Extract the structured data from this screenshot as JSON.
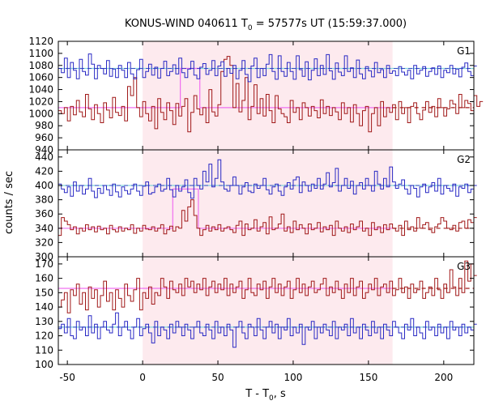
{
  "chart_data": {
    "type": "line",
    "title_prefix": "KONUS-WIND 040611 T",
    "title_sub": "0",
    "title_suffix": " = 57577s UT (15:59:37.000)",
    "xlabel_prefix": "T - T",
    "xlabel_sub": "0",
    "xlabel_suffix": ", s",
    "ylabel": "counts / sec",
    "xlim": [
      -56,
      220
    ],
    "xticks": [
      -50,
      0,
      50,
      100,
      150,
      200
    ],
    "highlight": {
      "x_start": 0,
      "x_end": 166,
      "color": "#fdeaee"
    },
    "colors": {
      "blue": "#2929c4",
      "red": "#a01818",
      "cyan": "#7fd8d8",
      "magenta": "#f070f0"
    },
    "panels": [
      {
        "name": "G1",
        "ylim": [
          940,
          1120
        ],
        "yticks": [
          940,
          960,
          980,
          1000,
          1020,
          1040,
          1060,
          1080,
          1100,
          1120
        ],
        "blue": {
          "name": "Blue series",
          "x_start": -56,
          "step": 2,
          "values": [
            1075,
            1068,
            1092,
            1060,
            1085,
            1072,
            1058,
            1090,
            1070,
            1064,
            1099,
            1082,
            1058,
            1080,
            1075,
            1066,
            1088,
            1062,
            1074,
            1060,
            1080,
            1072,
            1060,
            1085,
            1066,
            1058,
            1073,
            1090,
            1060,
            1070,
            1082,
            1064,
            1077,
            1059,
            1075,
            1087,
            1063,
            1070,
            1081,
            1066,
            1092,
            1068,
            1060,
            1074,
            1087,
            1064,
            1058,
            1077,
            1083,
            1065,
            1072,
            1088,
            1063,
            1079,
            1086,
            1062,
            1075,
            1067,
            1080,
            1058,
            1072,
            1088,
            1065,
            1053,
            1079,
            1092,
            1060,
            1075,
            1063,
            1082,
            1098,
            1070,
            1057,
            1096,
            1070,
            1062,
            1085,
            1070,
            1057,
            1096,
            1073,
            1062,
            1086,
            1056,
            1072,
            1091,
            1063,
            1080,
            1065,
            1098,
            1071,
            1057,
            1084,
            1069,
            1063,
            1096,
            1070,
            1076,
            1060,
            1089,
            1066,
            1058,
            1078,
            1071,
            1061,
            1085,
            1068,
            1073,
            1060,
            1080,
            1067,
            1071,
            1063,
            1078,
            1069,
            1064,
            1072,
            1058,
            1080,
            1066,
            1072,
            1078,
            1062,
            1070,
            1076,
            1065,
            1079,
            1060,
            1072,
            1068,
            1080,
            1066,
            1074,
            1061,
            1077,
            1084,
            1070,
            1063,
            1079
          ]
        },
        "red": {
          "name": "Red series",
          "x_start": -56,
          "step": 2,
          "values": [
            1005,
            1000,
            1010,
            988,
            1012,
            998,
            1022,
            1003,
            995,
            1032,
            1008,
            990,
            1015,
            1000,
            985,
            1018,
            1006,
            993,
            1027,
            1002,
            997,
            1012,
            988,
            1045,
            1030,
            1060,
            1010,
            995,
            1020,
            1000,
            988,
            1012,
            975,
            1025,
            1002,
            990,
            1018,
            1005,
            982,
            1017,
            996,
            1012,
            1025,
            970,
            1002,
            1030,
            1008,
            998,
            1010,
            985,
            1040,
            1003,
            996,
            1015,
            1070,
            1090,
            1095,
            1080,
            1010,
            1050,
            1003,
            1022,
            1060,
            990,
            1012,
            1048,
            1000,
            1025,
            996,
            1032,
            1005,
            985,
            1030,
            1008,
            1000,
            995,
            985,
            1022,
            1002,
            1010,
            990,
            1018,
            1010,
            996,
            1012,
            1005,
            993,
            1023,
            1000,
            1012,
            997,
            1010,
            1003,
            990,
            1018,
            1000,
            1010,
            986,
            1015,
            1000,
            980,
            1005,
            1012,
            970,
            1000,
            1010,
            980,
            1020,
            995,
            1010,
            1002,
            1015,
            990,
            1020,
            1000,
            1010,
            985,
            1012,
            1018,
            1000,
            990,
            1006,
            1020,
            1002,
            1012,
            995,
            1025,
            1010,
            996,
            1008,
            1022,
            1016,
            1000,
            1032,
            1010,
            1022,
            1017,
            1005,
            1030,
            1012,
            1020
          ]
        },
        "cyan_level": 1075,
        "red_level": 1010,
        "magenta_path": [
          [
            -56,
            1010
          ],
          [
            25,
            1010
          ],
          [
            25,
            1075
          ],
          [
            38,
            1075
          ],
          [
            38,
            1010
          ],
          [
            166,
            1010
          ]
        ]
      },
      {
        "name": "G2",
        "ylim": [
          300,
          450
        ],
        "yticks": [
          300,
          320,
          340,
          360,
          380,
          400,
          420,
          440
        ],
        "blue": {
          "name": "Blue series",
          "x_start": -56,
          "step": 2,
          "values": [
            402,
            395,
            390,
            398,
            385,
            405,
            392,
            400,
            388,
            395,
            410,
            392,
            383,
            396,
            389,
            400,
            394,
            386,
            402,
            391,
            384,
            398,
            393,
            388,
            395,
            402,
            392,
            386,
            399,
            405,
            388,
            390,
            398,
            402,
            392,
            395,
            410,
            394,
            384,
            400,
            392,
            398,
            408,
            390,
            382,
            410,
            400,
            395,
            420,
            405,
            430,
            398,
            410,
            436,
            405,
            395,
            392,
            400,
            412,
            400,
            388,
            398,
            404,
            392,
            390,
            402,
            396,
            400,
            410,
            394,
            388,
            398,
            402,
            392,
            386,
            398,
            404,
            395,
            408,
            412,
            390,
            405,
            400,
            392,
            402,
            396,
            410,
            395,
            402,
            418,
            398,
            404,
            424,
            392,
            400,
            410,
            396,
            406,
            388,
            400,
            404,
            395,
            410,
            400,
            392,
            420,
            402,
            395,
            410,
            398,
            426,
            405,
            396,
            402,
            408,
            395,
            388,
            400,
            396,
            384,
            398,
            402,
            390,
            398,
            404,
            392,
            410,
            388,
            400,
            396,
            392,
            402,
            385,
            398,
            396,
            402,
            390,
            395,
            400
          ]
        },
        "red": {
          "name": "Red series",
          "x_start": -56,
          "step": 2,
          "values": [
            330,
            355,
            350,
            345,
            338,
            342,
            332,
            340,
            336,
            345,
            338,
            342,
            335,
            343,
            338,
            340,
            332,
            344,
            338,
            335,
            342,
            336,
            340,
            338,
            345,
            333,
            340,
            336,
            344,
            339,
            338,
            342,
            336,
            340,
            345,
            332,
            338,
            343,
            336,
            342,
            340,
            365,
            350,
            370,
            380,
            358,
            340,
            330,
            338,
            344,
            336,
            342,
            338,
            345,
            336,
            340,
            342,
            338,
            334,
            344,
            350,
            330,
            346,
            338,
            340,
            352,
            336,
            342,
            348,
            332,
            356,
            338,
            340,
            346,
            360,
            336,
            342,
            334,
            350,
            338,
            345,
            340,
            332,
            346,
            338,
            340,
            348,
            335,
            342,
            338,
            344,
            330,
            350,
            340,
            336,
            342,
            334,
            346,
            338,
            342,
            350,
            336,
            340,
            330,
            348,
            338,
            342,
            334,
            345,
            338,
            346,
            340,
            336,
            344,
            330,
            350,
            338,
            342,
            336,
            355,
            340,
            345,
            348,
            338,
            334,
            342,
            346,
            355,
            350,
            340,
            338,
            344,
            336,
            348,
            350,
            340,
            352,
            348,
            355
          ]
        },
        "cyan_level": 400,
        "red_level": 340,
        "magenta_path": [
          [
            -56,
            340
          ],
          [
            20,
            340
          ],
          [
            20,
            395
          ],
          [
            37,
            395
          ],
          [
            37,
            340
          ],
          [
            166,
            340
          ]
        ]
      },
      {
        "name": "G3",
        "ylim": [
          100,
          175
        ],
        "yticks": [
          100,
          110,
          120,
          130,
          140,
          150,
          160,
          170
        ],
        "blue": {
          "name": "Blue series",
          "x_start": -56,
          "step": 2,
          "values": [
            125,
            128,
            122,
            132,
            120,
            118,
            130,
            124,
            126,
            120,
            134,
            122,
            128,
            118,
            126,
            130,
            124,
            122,
            128,
            136,
            120,
            126,
            130,
            124,
            118,
            126,
            132,
            120,
            125,
            128,
            122,
            115,
            130,
            120,
            126,
            124,
            118,
            128,
            122,
            130,
            126,
            120,
            128,
            124,
            118,
            126,
            130,
            122,
            120,
            128,
            124,
            118,
            130,
            122,
            126,
            120,
            128,
            124,
            112,
            126,
            130,
            122,
            118,
            128,
            126,
            120,
            132,
            124,
            118,
            126,
            130,
            122,
            128,
            118,
            126,
            124,
            132,
            120,
            126,
            122,
            128,
            114,
            126,
            124,
            130,
            118,
            126,
            122,
            128,
            124,
            120,
            130,
            118,
            126,
            124,
            128,
            120,
            132,
            122,
            126,
            118,
            128,
            124,
            120,
            130,
            122,
            126,
            118,
            128,
            124,
            120,
            130,
            126,
            122,
            118,
            128,
            124,
            132,
            120,
            126,
            122,
            118,
            130,
            124,
            126,
            120,
            128,
            122,
            126,
            118,
            130,
            124,
            126,
            120,
            128,
            122,
            126,
            124,
            128
          ]
        },
        "red": {
          "name": "Red series",
          "x_start": -56,
          "step": 2,
          "values": [
            140,
            145,
            150,
            136,
            152,
            148,
            156,
            142,
            150,
            138,
            154,
            146,
            152,
            140,
            148,
            158,
            144,
            150,
            138,
            152,
            146,
            140,
            156,
            148,
            144,
            152,
            160,
            138,
            150,
            146,
            154,
            142,
            150,
            148,
            160,
            154,
            146,
            158,
            152,
            150,
            156,
            148,
            160,
            154,
            158,
            150,
            156,
            152,
            160,
            148,
            154,
            158,
            150,
            156,
            152,
            160,
            148,
            156,
            150,
            154,
            158,
            146,
            152,
            160,
            150,
            148,
            156,
            152,
            158,
            146,
            154,
            160,
            150,
            156,
            148,
            154,
            158,
            146,
            152,
            160,
            150,
            156,
            148,
            154,
            158,
            150,
            152,
            156,
            160,
            148,
            154,
            150,
            158,
            152,
            146,
            156,
            150,
            160,
            148,
            154,
            158,
            146,
            150,
            156,
            152,
            160,
            148,
            154,
            156,
            150,
            158,
            148,
            152,
            160,
            150,
            154,
            146,
            156,
            150,
            152,
            158,
            146,
            150,
            154,
            148,
            160,
            152,
            146,
            156,
            150,
            166,
            154,
            148,
            160,
            150,
            172,
            158,
            170,
            162
          ]
        },
        "cyan_level": 126,
        "red_level": 153,
        "magenta_path": [
          [
            -56,
            153
          ],
          [
            166,
            153
          ]
        ]
      }
    ]
  }
}
